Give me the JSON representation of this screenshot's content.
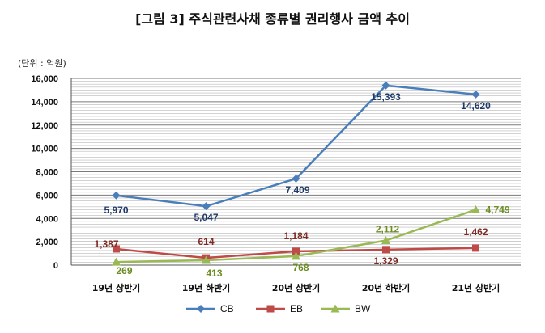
{
  "chart_data": {
    "type": "line",
    "title": "[그림 3] 주식관련사채 종류별 권리행사 금액 추이",
    "unit_note": "(단위 : 억원)",
    "categories": [
      "19년 상반기",
      "19년 하반기",
      "20년 상반기",
      "20년 하반기",
      "21년 상반기"
    ],
    "ylim": [
      0,
      16000
    ],
    "yticks": [
      0,
      2000,
      4000,
      6000,
      8000,
      10000,
      12000,
      14000,
      16000
    ],
    "ytick_labels": [
      "0",
      "2,000",
      "4,000",
      "6,000",
      "8,000",
      "10,000",
      "12,000",
      "14,000",
      "16,000"
    ],
    "grid": true,
    "legend_position": "bottom",
    "series": [
      {
        "name": "CB",
        "color": "#4a7ebb",
        "marker": "diamond",
        "values": [
          5970,
          5047,
          7409,
          15393,
          14620
        ],
        "labels": [
          "5,970",
          "5,047",
          "7,409",
          "15,393",
          "14,620"
        ],
        "label_color": "#1f3a68"
      },
      {
        "name": "EB",
        "color": "#be4b48",
        "marker": "square",
        "values": [
          1387,
          614,
          1184,
          1329,
          1462
        ],
        "labels": [
          "1,387",
          "614",
          "1,184",
          "1,329",
          "1,462"
        ],
        "label_color": "#7f2a26"
      },
      {
        "name": "BW",
        "color": "#98b954",
        "marker": "triangle",
        "values": [
          269,
          413,
          768,
          2112,
          4749
        ],
        "labels": [
          "269",
          "413",
          "768",
          "2,112",
          "4,749"
        ],
        "label_color": "#6b8e23"
      }
    ]
  }
}
